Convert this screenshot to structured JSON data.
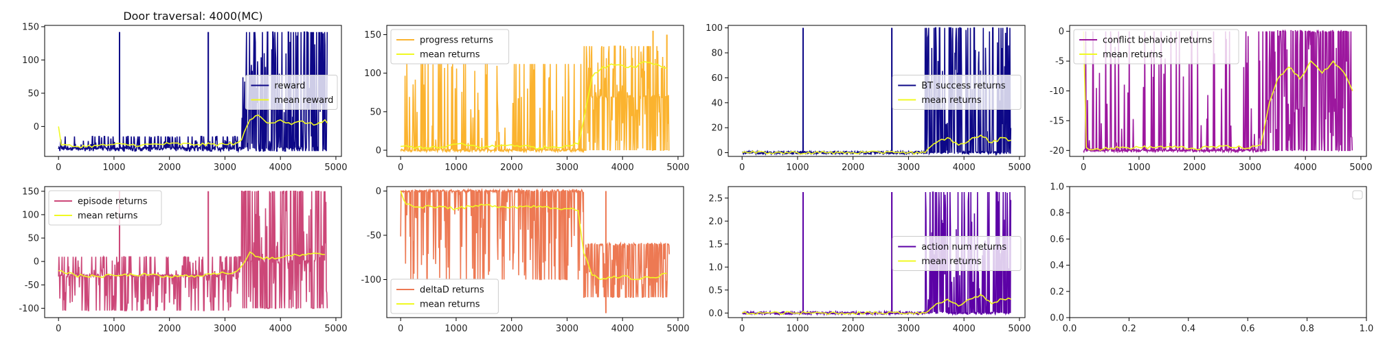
{
  "figure": {
    "title": "Door traversal: 4000(MC)"
  },
  "chart_data": [
    {
      "type": "line",
      "panel": "a",
      "title": "Door traversal: 4000(MC)",
      "xlim": [
        -250,
        5100
      ],
      "ylim": [
        -45,
        152
      ],
      "xticks": [
        0,
        1000,
        2000,
        3000,
        4000,
        5000
      ],
      "yticks": [
        0,
        50,
        100,
        150
      ],
      "legend_position": "right",
      "grid": false,
      "series": [
        {
          "name": "reward",
          "color": "#0d0887",
          "kind": "noise",
          "segments": [
            {
              "x": [
                0,
                3300
              ],
              "base": -33,
              "low": -37,
              "high": -15,
              "density": 0.35
            },
            {
              "x": [
                3300,
                4850
              ],
              "base": -33,
              "low": -37,
              "high": 142,
              "density": 0.7
            }
          ],
          "spikes": [
            {
              "x": 1100,
              "y": 142
            },
            {
              "x": 2700,
              "y": 142
            }
          ]
        },
        {
          "name": "mean reward",
          "color": "#f0f921",
          "kind": "mean",
          "x": [
            0,
            50,
            300,
            700,
            1000,
            1500,
            2000,
            2500,
            3000,
            3200,
            3300,
            3450,
            3600,
            3800,
            4000,
            4200,
            4400,
            4600,
            4800,
            4850
          ],
          "y": [
            0,
            -28,
            -30,
            -29,
            -27,
            -28,
            -26,
            -27,
            -27,
            -25,
            -20,
            10,
            17,
            5,
            10,
            3,
            8,
            2,
            10,
            5
          ]
        }
      ]
    },
    {
      "type": "line",
      "panel": "b",
      "xlim": [
        -250,
        5100
      ],
      "ylim": [
        -8,
        162
      ],
      "xticks": [
        0,
        1000,
        2000,
        3000,
        4000,
        5000
      ],
      "yticks": [
        0,
        50,
        100,
        150
      ],
      "legend_position": "top-left",
      "grid": false,
      "series": [
        {
          "name": "progress returns",
          "color": "#fbb32f",
          "kind": "noise",
          "segments": [
            {
              "x": [
                0,
                3300
              ],
              "base": 0,
              "low": 0,
              "high": 112,
              "density": 0.3
            },
            {
              "x": [
                3300,
                4850
              ],
              "base": 70,
              "low": 0,
              "high": 135,
              "density": 0.75
            }
          ],
          "spikes": [
            {
              "x": 4550,
              "y": 155
            },
            {
              "x": 4800,
              "y": 150
            }
          ]
        },
        {
          "name": "mean returns",
          "color": "#f0f921",
          "kind": "mean",
          "x": [
            0,
            300,
            700,
            1000,
            1500,
            2000,
            2500,
            3000,
            3200,
            3300,
            3450,
            3600,
            3800,
            4000,
            4200,
            4400,
            4600,
            4800
          ],
          "y": [
            5,
            4,
            3,
            8,
            4,
            7,
            3,
            6,
            8,
            40,
            95,
            105,
            112,
            110,
            108,
            115,
            112,
            106
          ]
        }
      ]
    },
    {
      "type": "line",
      "panel": "c",
      "xlim": [
        -250,
        5100
      ],
      "ylim": [
        -3,
        102
      ],
      "xticks": [
        0,
        1000,
        2000,
        3000,
        4000,
        5000
      ],
      "yticks": [
        0,
        20,
        40,
        60,
        80,
        100
      ],
      "legend_position": "right",
      "grid": false,
      "series": [
        {
          "name": "BT success returns",
          "color": "#0d0887",
          "kind": "noise",
          "segments": [
            {
              "x": [
                0,
                3300
              ],
              "base": 0,
              "low": 0,
              "high": 0.5,
              "density": 0.05
            },
            {
              "x": [
                3300,
                4850
              ],
              "base": 0,
              "low": 0,
              "high": 100,
              "density": 0.6
            }
          ],
          "spikes": [
            {
              "x": 1100,
              "y": 100
            },
            {
              "x": 2700,
              "y": 100
            }
          ]
        },
        {
          "name": "mean returns",
          "color": "#f0f921",
          "kind": "mean",
          "x": [
            0,
            500,
            1000,
            1500,
            2000,
            2500,
            2700,
            3000,
            3300,
            3500,
            3700,
            3900,
            4100,
            4300,
            4500,
            4700,
            4850
          ],
          "y": [
            0,
            0,
            0,
            0,
            0,
            0,
            1,
            0,
            0,
            8,
            12,
            6,
            10,
            14,
            8,
            12,
            10
          ]
        }
      ]
    },
    {
      "type": "line",
      "panel": "d",
      "xlim": [
        -250,
        5100
      ],
      "ylim": [
        -21,
        1
      ],
      "xticks": [
        0,
        1000,
        2000,
        3000,
        4000,
        5000
      ],
      "yticks": [
        -20,
        -15,
        -10,
        -5,
        0
      ],
      "legend_position": "top-left",
      "grid": false,
      "series": [
        {
          "name": "conflict behavior returns",
          "color": "#9c179e",
          "kind": "noise",
          "segments": [
            {
              "x": [
                0,
                3300
              ],
              "base": -20,
              "low": -20,
              "high": 0,
              "density": 0.25
            },
            {
              "x": [
                3300,
                4850
              ],
              "base": 0,
              "low": -20,
              "high": 0,
              "density": 0.8
            }
          ],
          "spikes": []
        },
        {
          "name": "mean returns",
          "color": "#f0f921",
          "kind": "mean",
          "x": [
            0,
            50,
            200,
            500,
            1000,
            1500,
            2000,
            2500,
            3000,
            3200,
            3350,
            3500,
            3700,
            3900,
            4100,
            4300,
            4500,
            4700,
            4850
          ],
          "y": [
            0,
            -19.5,
            -19.8,
            -19.6,
            -19.5,
            -19.4,
            -19.7,
            -19.3,
            -19.6,
            -19,
            -12,
            -8,
            -6,
            -8,
            -5,
            -7,
            -5,
            -7,
            -10
          ]
        }
      ]
    },
    {
      "type": "line",
      "panel": "e",
      "xlim": [
        -250,
        5100
      ],
      "ylim": [
        -120,
        160
      ],
      "xticks": [
        0,
        1000,
        2000,
        3000,
        4000,
        5000
      ],
      "yticks": [
        -100,
        -50,
        0,
        50,
        100,
        150
      ],
      "legend_position": "top-left",
      "grid": false,
      "series": [
        {
          "name": "episode returns",
          "color": "#cc4778",
          "kind": "noise",
          "segments": [
            {
              "x": [
                0,
                3300
              ],
              "base": -30,
              "low": -105,
              "high": 10,
              "density": 0.5
            },
            {
              "x": [
                3300,
                4850
              ],
              "base": 0,
              "low": -100,
              "high": 150,
              "density": 0.75
            }
          ],
          "spikes": [
            {
              "x": 1100,
              "y": 150
            },
            {
              "x": 2700,
              "y": 150
            }
          ]
        },
        {
          "name": "mean returns",
          "color": "#f0f921",
          "kind": "mean",
          "x": [
            0,
            300,
            700,
            1000,
            1500,
            2000,
            2500,
            3000,
            3200,
            3300,
            3450,
            3600,
            3800,
            4000,
            4200,
            4400,
            4600,
            4800
          ],
          "y": [
            -20,
            -30,
            -32,
            -30,
            -28,
            -33,
            -30,
            -25,
            -22,
            -10,
            20,
            10,
            5,
            8,
            12,
            15,
            18,
            15
          ]
        }
      ]
    },
    {
      "type": "line",
      "panel": "f",
      "xlim": [
        -250,
        5100
      ],
      "ylim": [
        -143,
        5
      ],
      "xticks": [
        0,
        1000,
        2000,
        3000,
        4000,
        5000
      ],
      "yticks": [
        -100,
        -50,
        0
      ],
      "legend_position": "bottom-left",
      "grid": false,
      "series": [
        {
          "name": "deltaD returns",
          "color": "#ed7953",
          "kind": "noise",
          "segments": [
            {
              "x": [
                0,
                3300
              ],
              "base": 0,
              "low": -100,
              "high": 0,
              "density": 0.4
            },
            {
              "x": [
                3300,
                4850
              ],
              "base": -60,
              "low": -120,
              "high": -60,
              "density": 0.75
            }
          ],
          "spikes": [
            {
              "x": 3700,
              "y": -138
            }
          ]
        },
        {
          "name": "mean returns",
          "color": "#f0f921",
          "kind": "mean",
          "x": [
            0,
            100,
            300,
            700,
            1000,
            1500,
            2000,
            2500,
            3000,
            3200,
            3300,
            3450,
            3600,
            3800,
            4000,
            4200,
            4400,
            4600,
            4800
          ],
          "y": [
            0,
            -15,
            -18,
            -17,
            -20,
            -16,
            -18,
            -17,
            -20,
            -22,
            -70,
            -95,
            -100,
            -98,
            -96,
            -100,
            -97,
            -98,
            -93
          ]
        }
      ]
    },
    {
      "type": "line",
      "panel": "g",
      "xlim": [
        -250,
        5100
      ],
      "ylim": [
        -0.1,
        2.75
      ],
      "xticks": [
        0,
        1000,
        2000,
        3000,
        4000,
        5000
      ],
      "yticks": [
        0.0,
        0.5,
        1.0,
        1.5,
        2.0,
        2.5
      ],
      "legend_position": "right",
      "grid": false,
      "series": [
        {
          "name": "action num returns",
          "color": "#5c01a6",
          "kind": "noise",
          "segments": [
            {
              "x": [
                0,
                3300
              ],
              "base": 0,
              "low": 0,
              "high": 0.01,
              "density": 0.02
            },
            {
              "x": [
                3300,
                4850
              ],
              "base": 0,
              "low": 0,
              "high": 2.63,
              "density": 0.6
            }
          ],
          "spikes": [
            {
              "x": 1100,
              "y": 2.63
            },
            {
              "x": 2700,
              "y": 2.63
            }
          ]
        },
        {
          "name": "mean returns",
          "color": "#f0f921",
          "kind": "mean",
          "x": [
            0,
            500,
            1000,
            1500,
            2000,
            2500,
            2700,
            3000,
            3300,
            3500,
            3700,
            3900,
            4100,
            4300,
            4500,
            4700,
            4850
          ],
          "y": [
            0,
            0,
            0,
            0,
            0,
            0,
            0.02,
            0,
            0,
            0.2,
            0.3,
            0.15,
            0.3,
            0.4,
            0.2,
            0.3,
            0.3
          ]
        }
      ]
    },
    {
      "type": "line",
      "panel": "h",
      "xlim": [
        0,
        1
      ],
      "ylim": [
        0,
        1
      ],
      "xticks": [
        0.0,
        0.2,
        0.4,
        0.6,
        0.8,
        1.0
      ],
      "yticks": [
        0.0,
        0.2,
        0.4,
        0.6,
        0.8,
        1.0
      ],
      "legend_position": "top-right",
      "grid": false,
      "empty_legend": true,
      "series": []
    }
  ]
}
